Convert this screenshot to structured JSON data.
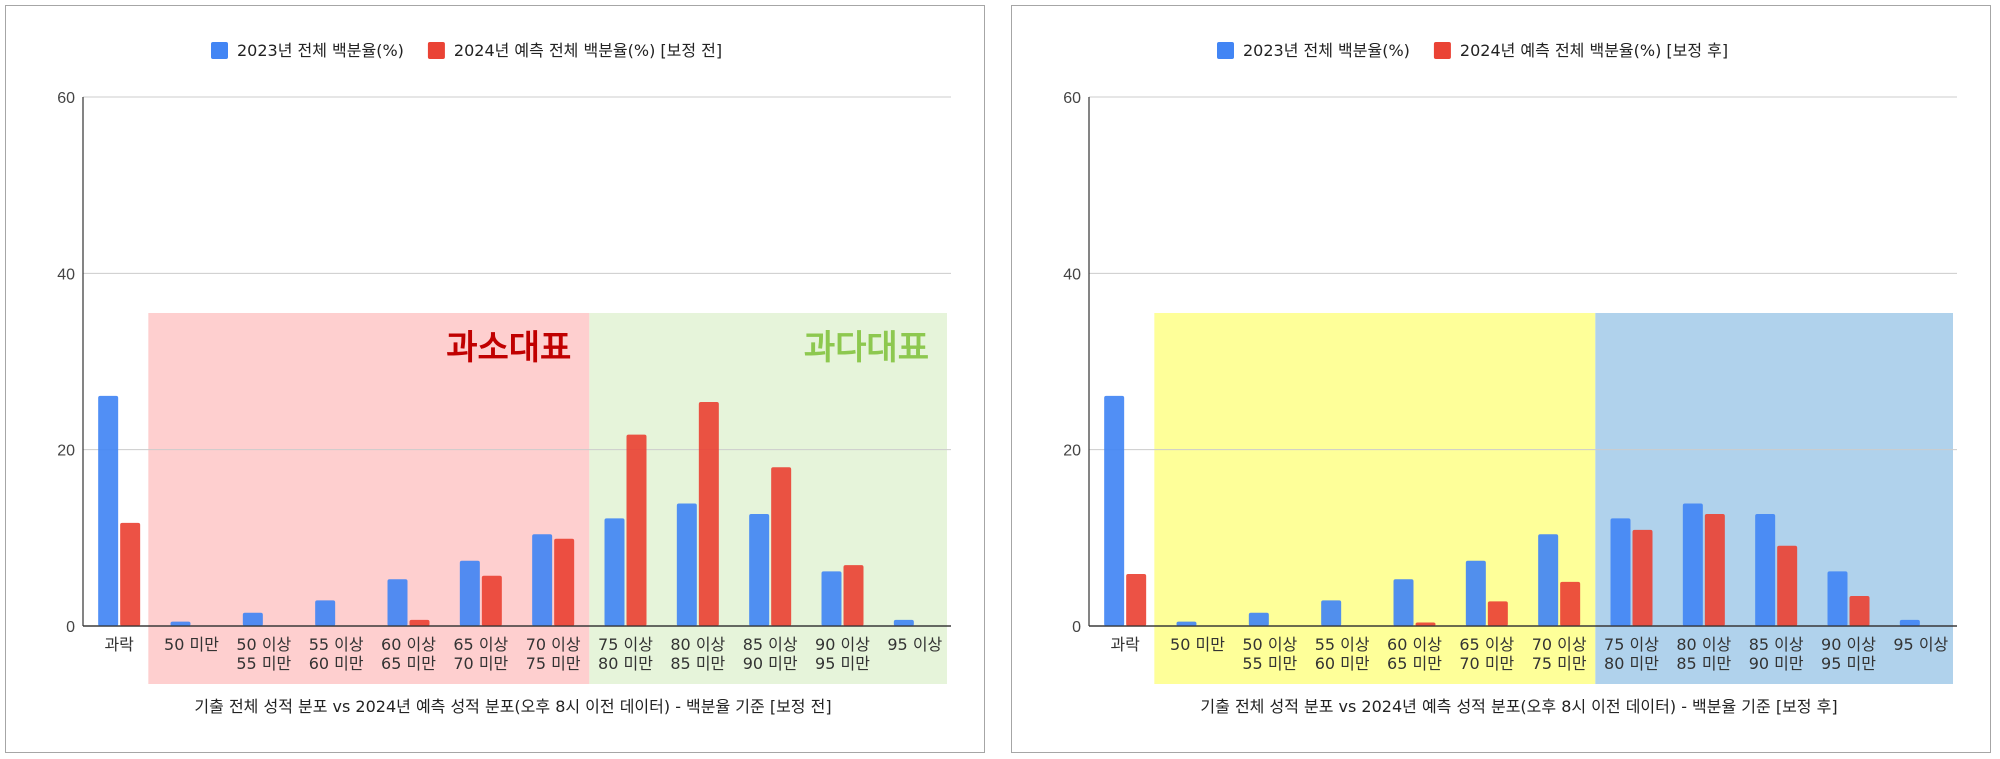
{
  "chart_data": [
    {
      "type": "bar",
      "title": "",
      "xlabel": "기출 전체 성적 분포 vs 2024년 예측 성적 분포(오후 8시 이전 데이터) - 백분율 기준 [보정 전]",
      "ylabel": "",
      "ylim": [
        0,
        60
      ],
      "yticks": [
        "0",
        "20",
        "40",
        "60"
      ],
      "grid": true,
      "legend_position": "top",
      "categories": [
        [
          "과락"
        ],
        [
          "50 미만"
        ],
        [
          "50 이상",
          "55 미만"
        ],
        [
          "55 이상",
          "60 미만"
        ],
        [
          "60 이상",
          "65 미만"
        ],
        [
          "65 이상",
          "70 미만"
        ],
        [
          "70 이상",
          "75 미만"
        ],
        [
          "75 이상",
          "80 미만"
        ],
        [
          "80 이상",
          "85 미만"
        ],
        [
          "85 이상",
          "90 미만"
        ],
        [
          "90 이상",
          "95 미만"
        ],
        [
          "95 이상"
        ]
      ],
      "series": [
        {
          "name": "2023년 전체 백분율(%)",
          "color": "#4285f4",
          "values": [
            26.1,
            0.5,
            1.5,
            2.9,
            5.3,
            7.4,
            10.4,
            12.2,
            13.9,
            12.7,
            6.2,
            0.7
          ]
        },
        {
          "name": "2024년 예측 전체 백분율(%) [보정 전]",
          "color": "#ea4335",
          "values": [
            11.7,
            0,
            0,
            0,
            0.7,
            5.7,
            9.9,
            21.7,
            25.4,
            18.0,
            6.9,
            0
          ]
        }
      ],
      "bands": [
        {
          "label": "과소대표",
          "from": 1,
          "to": 6,
          "fill": "#fecfcf",
          "text_color": "#c00000"
        },
        {
          "label": "과다대표",
          "from": 7,
          "to": 11,
          "fill": "#e6f4da",
          "text_color": "#8dc84f"
        }
      ]
    },
    {
      "type": "bar",
      "title": "",
      "xlabel": "기출 전체 성적 분포 vs 2024년 예측 성적 분포(오후 8시 이전 데이터) - 백분율 기준 [보정 후]",
      "ylabel": "",
      "ylim": [
        0,
        60
      ],
      "yticks": [
        "0",
        "20",
        "40",
        "60"
      ],
      "grid": true,
      "legend_position": "top",
      "categories": [
        [
          "과락"
        ],
        [
          "50 미만"
        ],
        [
          "50 이상",
          "55 미만"
        ],
        [
          "55 이상",
          "60 미만"
        ],
        [
          "60 이상",
          "65 미만"
        ],
        [
          "65 이상",
          "70 미만"
        ],
        [
          "70 이상",
          "75 미만"
        ],
        [
          "75 이상",
          "80 미만"
        ],
        [
          "80 이상",
          "85 미만"
        ],
        [
          "85 이상",
          "90 미만"
        ],
        [
          "90 이상",
          "95 미만"
        ],
        [
          "95 이상"
        ]
      ],
      "series": [
        {
          "name": "2023년 전체 백분율(%)",
          "color": "#4285f4",
          "values": [
            26.1,
            0.5,
            1.5,
            2.9,
            5.3,
            7.4,
            10.4,
            12.2,
            13.9,
            12.7,
            6.2,
            0.7
          ]
        },
        {
          "name": "2024년 예측 전체 백분율(%) [보정 후]",
          "color": "#ea4335",
          "values": [
            5.9,
            0,
            0,
            0,
            0.4,
            2.8,
            5.0,
            10.9,
            12.7,
            9.1,
            3.4,
            0
          ]
        }
      ],
      "bands": [
        {
          "label": "",
          "from": 1,
          "to": 6,
          "fill": "#feff99",
          "text_color": ""
        },
        {
          "label": "",
          "from": 7,
          "to": 11,
          "fill": "#b0d2ec",
          "text_color": ""
        }
      ]
    }
  ]
}
